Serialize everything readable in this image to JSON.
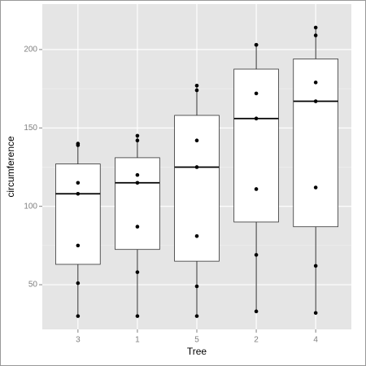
{
  "chart_data": {
    "type": "box",
    "x_label": "Tree",
    "y_label": "circumference",
    "categories": [
      "3",
      "1",
      "5",
      "2",
      "4"
    ],
    "boxes": [
      {
        "min": 30,
        "q1": 63,
        "median": 108,
        "q3": 127,
        "max": 140
      },
      {
        "min": 30,
        "q1": 72.5,
        "median": 115,
        "q3": 131,
        "max": 145
      },
      {
        "min": 30,
        "q1": 65,
        "median": 125,
        "q3": 158,
        "max": 177
      },
      {
        "min": 33,
        "q1": 90,
        "median": 156,
        "q3": 187.5,
        "max": 203
      },
      {
        "min": 32,
        "q1": 87,
        "median": 167,
        "q3": 194,
        "max": 214
      }
    ],
    "points": [
      [
        30,
        51,
        75,
        108,
        115,
        139,
        140
      ],
      [
        30,
        58,
        87,
        115,
        120,
        142,
        145
      ],
      [
        30,
        49,
        81,
        125,
        142,
        174,
        177
      ],
      [
        33,
        69,
        111,
        156,
        172,
        203,
        203
      ],
      [
        32,
        62,
        112,
        167,
        179,
        209,
        214
      ]
    ],
    "ylim": [
      21.5,
      229
    ],
    "yticks": [
      50,
      100,
      150,
      200
    ],
    "y_minor_grid": [
      75,
      125,
      175
    ],
    "grid": true
  }
}
